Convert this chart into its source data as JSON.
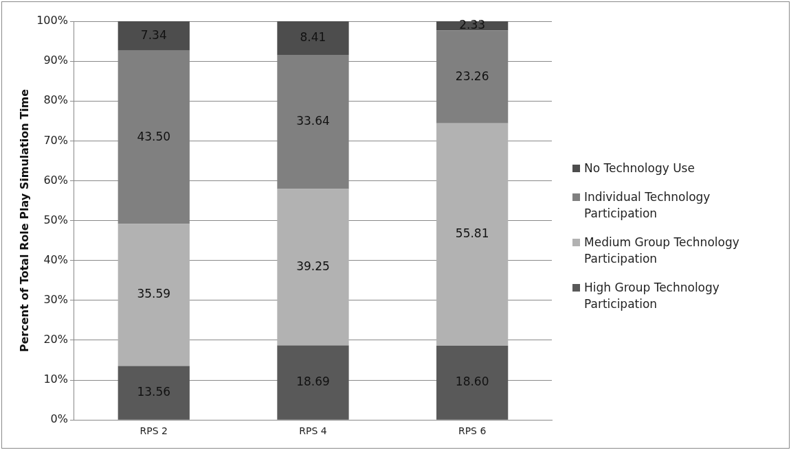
{
  "chart_data": {
    "type": "bar",
    "stacked": true,
    "ylabel": "Percent of Total Role Play Simulation Time",
    "categories": [
      "RPS 2",
      "RPS 4",
      "RPS 6"
    ],
    "series": [
      {
        "name": "High Group Technology Participation",
        "color": "#595959",
        "values": [
          13.56,
          18.69,
          18.6
        ],
        "value_labels": [
          "13.56",
          "18.69",
          "18.60"
        ]
      },
      {
        "name": "Medium Group Technology Participation",
        "color": "#b2b2b2",
        "values": [
          35.59,
          39.25,
          55.81
        ],
        "value_labels": [
          "35.59",
          "39.25",
          "55.81"
        ]
      },
      {
        "name": "Individual Technology Participation",
        "color": "#808080",
        "values": [
          43.5,
          33.64,
          23.26
        ],
        "value_labels": [
          "43.50",
          "33.64",
          "23.26"
        ]
      },
      {
        "name": "No Technology Use",
        "color": "#4d4d4d",
        "values": [
          7.34,
          8.41,
          2.33
        ],
        "value_labels": [
          "7.34",
          "8.41",
          "2.33"
        ]
      }
    ],
    "ylim": [
      0,
      100
    ],
    "yticks": [
      {
        "value": 0,
        "label": "0%"
      },
      {
        "value": 10,
        "label": "10%"
      },
      {
        "value": 20,
        "label": "20%"
      },
      {
        "value": 30,
        "label": "30%"
      },
      {
        "value": 40,
        "label": "40%"
      },
      {
        "value": 50,
        "label": "50%"
      },
      {
        "value": 60,
        "label": "60%"
      },
      {
        "value": 70,
        "label": "70%"
      },
      {
        "value": 80,
        "label": "80%"
      },
      {
        "value": 90,
        "label": "90%"
      },
      {
        "value": 100,
        "label": "100%"
      }
    ],
    "grid": "y",
    "legend": "right"
  }
}
